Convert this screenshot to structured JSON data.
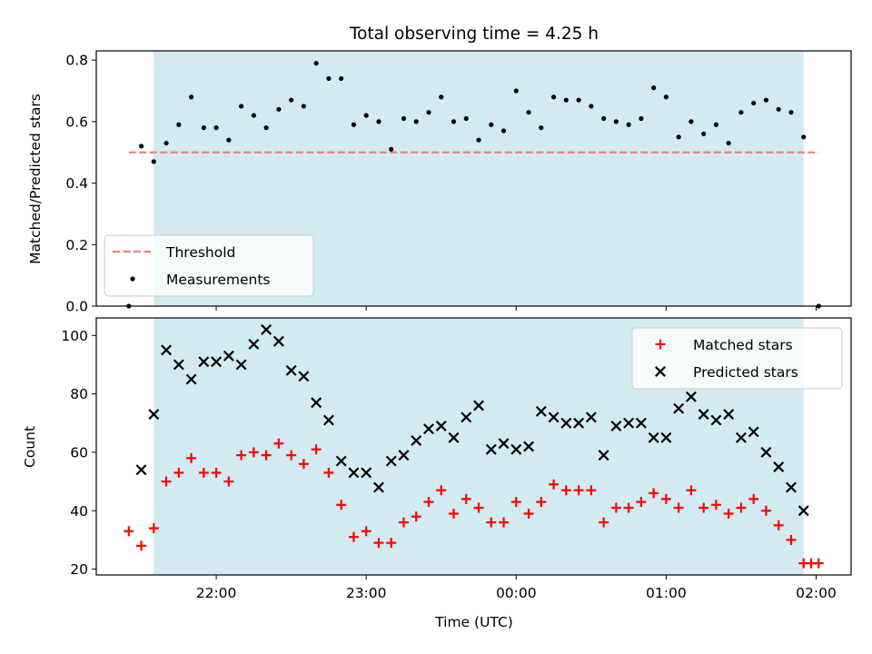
{
  "figure": {
    "title": "Total observing time = 4.25 h"
  },
  "chart_data": [
    {
      "type": "scatter",
      "title": "Total observing time = 4.25 h",
      "xlabel": "",
      "ylabel": "Matched/Predicted stars",
      "xlim": [
        "21:12",
        "02:14"
      ],
      "ylim": [
        0,
        0.83
      ],
      "yticks": [
        "0.0",
        "0.2",
        "0.4",
        "0.6",
        "0.8"
      ],
      "shaded_interval": [
        "21:35",
        "01:55"
      ],
      "shaded_color": "#add8e6",
      "threshold": {
        "name": "Threshold",
        "value": 0.5,
        "color": "#f08080",
        "from": "21:25",
        "to": "02:01"
      },
      "legend": {
        "loc": "lower-left",
        "entries": [
          "Threshold",
          "Measurements"
        ]
      },
      "series": [
        {
          "name": "Measurements",
          "color": "#000000",
          "marker": "dot",
          "x": [
            "21:25",
            "21:30",
            "21:35",
            "21:40",
            "21:45",
            "21:50",
            "21:55",
            "22:00",
            "22:05",
            "22:10",
            "22:15",
            "22:20",
            "22:25",
            "22:30",
            "22:35",
            "22:40",
            "22:45",
            "22:50",
            "22:55",
            "23:00",
            "23:05",
            "23:10",
            "23:15",
            "23:20",
            "23:25",
            "23:30",
            "23:35",
            "23:40",
            "23:45",
            "23:50",
            "23:55",
            "00:00",
            "00:05",
            "00:10",
            "00:15",
            "00:20",
            "00:25",
            "00:30",
            "00:35",
            "00:40",
            "00:45",
            "00:50",
            "00:55",
            "01:00",
            "01:05",
            "01:10",
            "01:15",
            "01:20",
            "01:25",
            "01:30",
            "01:35",
            "01:40",
            "01:45",
            "01:50",
            "01:55",
            "02:01"
          ],
          "y": [
            0.0,
            0.52,
            0.47,
            0.53,
            0.59,
            0.68,
            0.58,
            0.58,
            0.54,
            0.65,
            0.62,
            0.58,
            0.64,
            0.67,
            0.65,
            0.79,
            0.74,
            0.74,
            0.59,
            0.62,
            0.6,
            0.51,
            0.61,
            0.6,
            0.63,
            0.68,
            0.6,
            0.61,
            0.54,
            0.59,
            0.57,
            0.7,
            0.63,
            0.58,
            0.68,
            0.67,
            0.67,
            0.65,
            0.61,
            0.6,
            0.59,
            0.61,
            0.71,
            0.68,
            0.55,
            0.6,
            0.56,
            0.59,
            0.53,
            0.63,
            0.66,
            0.67,
            0.64,
            0.63,
            0.55,
            0.0
          ]
        }
      ]
    },
    {
      "type": "scatter",
      "title": "",
      "xlabel": "Time (UTC)",
      "ylabel": "Count",
      "xlim": [
        "21:12",
        "02:14"
      ],
      "ylim": [
        18,
        106
      ],
      "yticks": [
        "20",
        "40",
        "60",
        "80",
        "100"
      ],
      "xticks": [
        "22:00",
        "23:00",
        "00:00",
        "01:00",
        "02:00"
      ],
      "shaded_interval": [
        "21:35",
        "01:55"
      ],
      "shaded_color": "#add8e6",
      "legend": {
        "loc": "upper-right",
        "entries": [
          "Matched stars",
          "Predicted stars"
        ]
      },
      "series": [
        {
          "name": "Matched stars",
          "color": "#ff0000",
          "marker": "plus",
          "x": [
            "21:25",
            "21:30",
            "21:35",
            "21:40",
            "21:45",
            "21:50",
            "21:55",
            "22:00",
            "22:05",
            "22:10",
            "22:15",
            "22:20",
            "22:25",
            "22:30",
            "22:35",
            "22:40",
            "22:45",
            "22:50",
            "22:55",
            "23:00",
            "23:05",
            "23:10",
            "23:15",
            "23:20",
            "23:25",
            "23:30",
            "23:35",
            "23:40",
            "23:45",
            "23:50",
            "23:55",
            "00:00",
            "00:05",
            "00:10",
            "00:15",
            "00:20",
            "00:25",
            "00:30",
            "00:35",
            "00:40",
            "00:45",
            "00:50",
            "00:55",
            "01:00",
            "01:05",
            "01:10",
            "01:15",
            "01:20",
            "01:25",
            "01:30",
            "01:35",
            "01:40",
            "01:45",
            "01:50",
            "01:55",
            "01:58",
            "02:01"
          ],
          "y": [
            33,
            28,
            34,
            50,
            53,
            58,
            53,
            53,
            50,
            59,
            60,
            59,
            63,
            59,
            56,
            61,
            53,
            42,
            31,
            33,
            29,
            29,
            36,
            38,
            43,
            47,
            39,
            44,
            41,
            36,
            36,
            43,
            39,
            43,
            49,
            47,
            47,
            47,
            36,
            41,
            41,
            43,
            46,
            44,
            41,
            47,
            41,
            42,
            39,
            41,
            44,
            40,
            35,
            30,
            22,
            22,
            22
          ]
        },
        {
          "name": "Predicted stars",
          "color": "#000000",
          "marker": "x",
          "x": [
            "21:30",
            "21:35",
            "21:40",
            "21:45",
            "21:50",
            "21:55",
            "22:00",
            "22:05",
            "22:10",
            "22:15",
            "22:20",
            "22:25",
            "22:30",
            "22:35",
            "22:40",
            "22:45",
            "22:50",
            "22:55",
            "23:00",
            "23:05",
            "23:10",
            "23:15",
            "23:20",
            "23:25",
            "23:30",
            "23:35",
            "23:40",
            "23:45",
            "23:50",
            "23:55",
            "00:00",
            "00:05",
            "00:10",
            "00:15",
            "00:20",
            "00:25",
            "00:30",
            "00:35",
            "00:40",
            "00:45",
            "00:50",
            "00:55",
            "01:00",
            "01:05",
            "01:10",
            "01:15",
            "01:20",
            "01:25",
            "01:30",
            "01:35",
            "01:40",
            "01:45",
            "01:50",
            "01:55"
          ],
          "y": [
            54,
            73,
            95,
            90,
            85,
            91,
            91,
            93,
            90,
            97,
            102,
            98,
            88,
            86,
            77,
            71,
            57,
            53,
            53,
            48,
            57,
            59,
            64,
            68,
            69,
            65,
            72,
            76,
            61,
            63,
            61,
            62,
            74,
            72,
            70,
            70,
            72,
            59,
            69,
            70,
            70,
            65,
            65,
            75,
            79,
            73,
            71,
            73,
            65,
            67,
            60,
            55,
            48,
            40
          ]
        }
      ]
    }
  ]
}
